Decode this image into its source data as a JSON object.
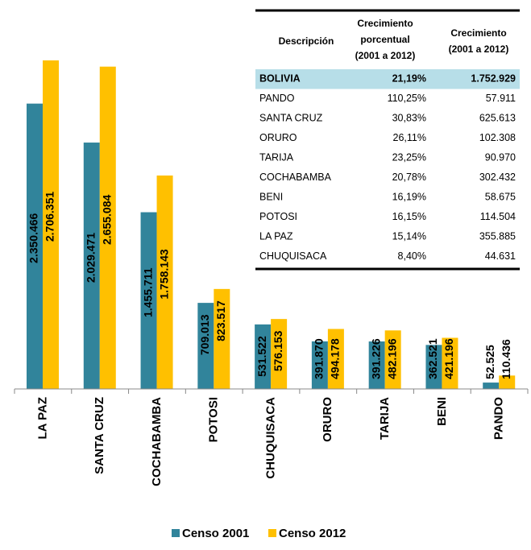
{
  "chart_data": {
    "type": "bar",
    "categories": [
      "LA PAZ",
      "SANTA CRUZ",
      "COCHABAMBA",
      "POTOSI",
      "CHUQUISACA",
      "ORURO",
      "TARIJA",
      "BENI",
      "PANDO"
    ],
    "series": [
      {
        "name": "Censo 2001",
        "color": "#31849b",
        "values": [
          2350466,
          2029471,
          1455711,
          709013,
          531522,
          391870,
          391226,
          362521,
          52525
        ],
        "value_labels": [
          "2.350.466",
          "2.029.471",
          "1.455.711",
          "709.013",
          "531.522",
          "391.870",
          "391.226",
          "362.521",
          "52.525"
        ]
      },
      {
        "name": "Censo 2012",
        "color": "#ffc000",
        "values": [
          2706351,
          2655084,
          1758143,
          823517,
          576153,
          494178,
          482196,
          421196,
          110436
        ],
        "value_labels": [
          "2.706.351",
          "2.655.084",
          "1.758.143",
          "823.517",
          "576.153",
          "494.178",
          "482.196",
          "421.196",
          "110.436"
        ]
      }
    ],
    "legend": "bottom"
  },
  "table": {
    "headers": [
      [
        "Descripción"
      ],
      [
        "Crecimiento",
        "porcentual",
        "(2001 a 2012)"
      ],
      [
        "Crecimiento",
        "(2001 a 2012)"
      ]
    ],
    "rows": [
      [
        "BOLIVIA",
        "21,19%",
        "1.752.929"
      ],
      [
        "PANDO",
        "110,25%",
        "57.911"
      ],
      [
        "SANTA CRUZ",
        "30,83%",
        "625.613"
      ],
      [
        "ORURO",
        "26,11%",
        "102.308"
      ],
      [
        "TARIJA",
        "23,25%",
        "90.970"
      ],
      [
        "COCHABAMBA",
        "20,78%",
        "302.432"
      ],
      [
        "BENI",
        "16,19%",
        "58.675"
      ],
      [
        "POTOSI",
        "16,15%",
        "114.504"
      ],
      [
        "LA PAZ",
        "15,14%",
        "355.885"
      ],
      [
        "CHUQUISACA",
        "8,40%",
        "44.631"
      ]
    ]
  }
}
